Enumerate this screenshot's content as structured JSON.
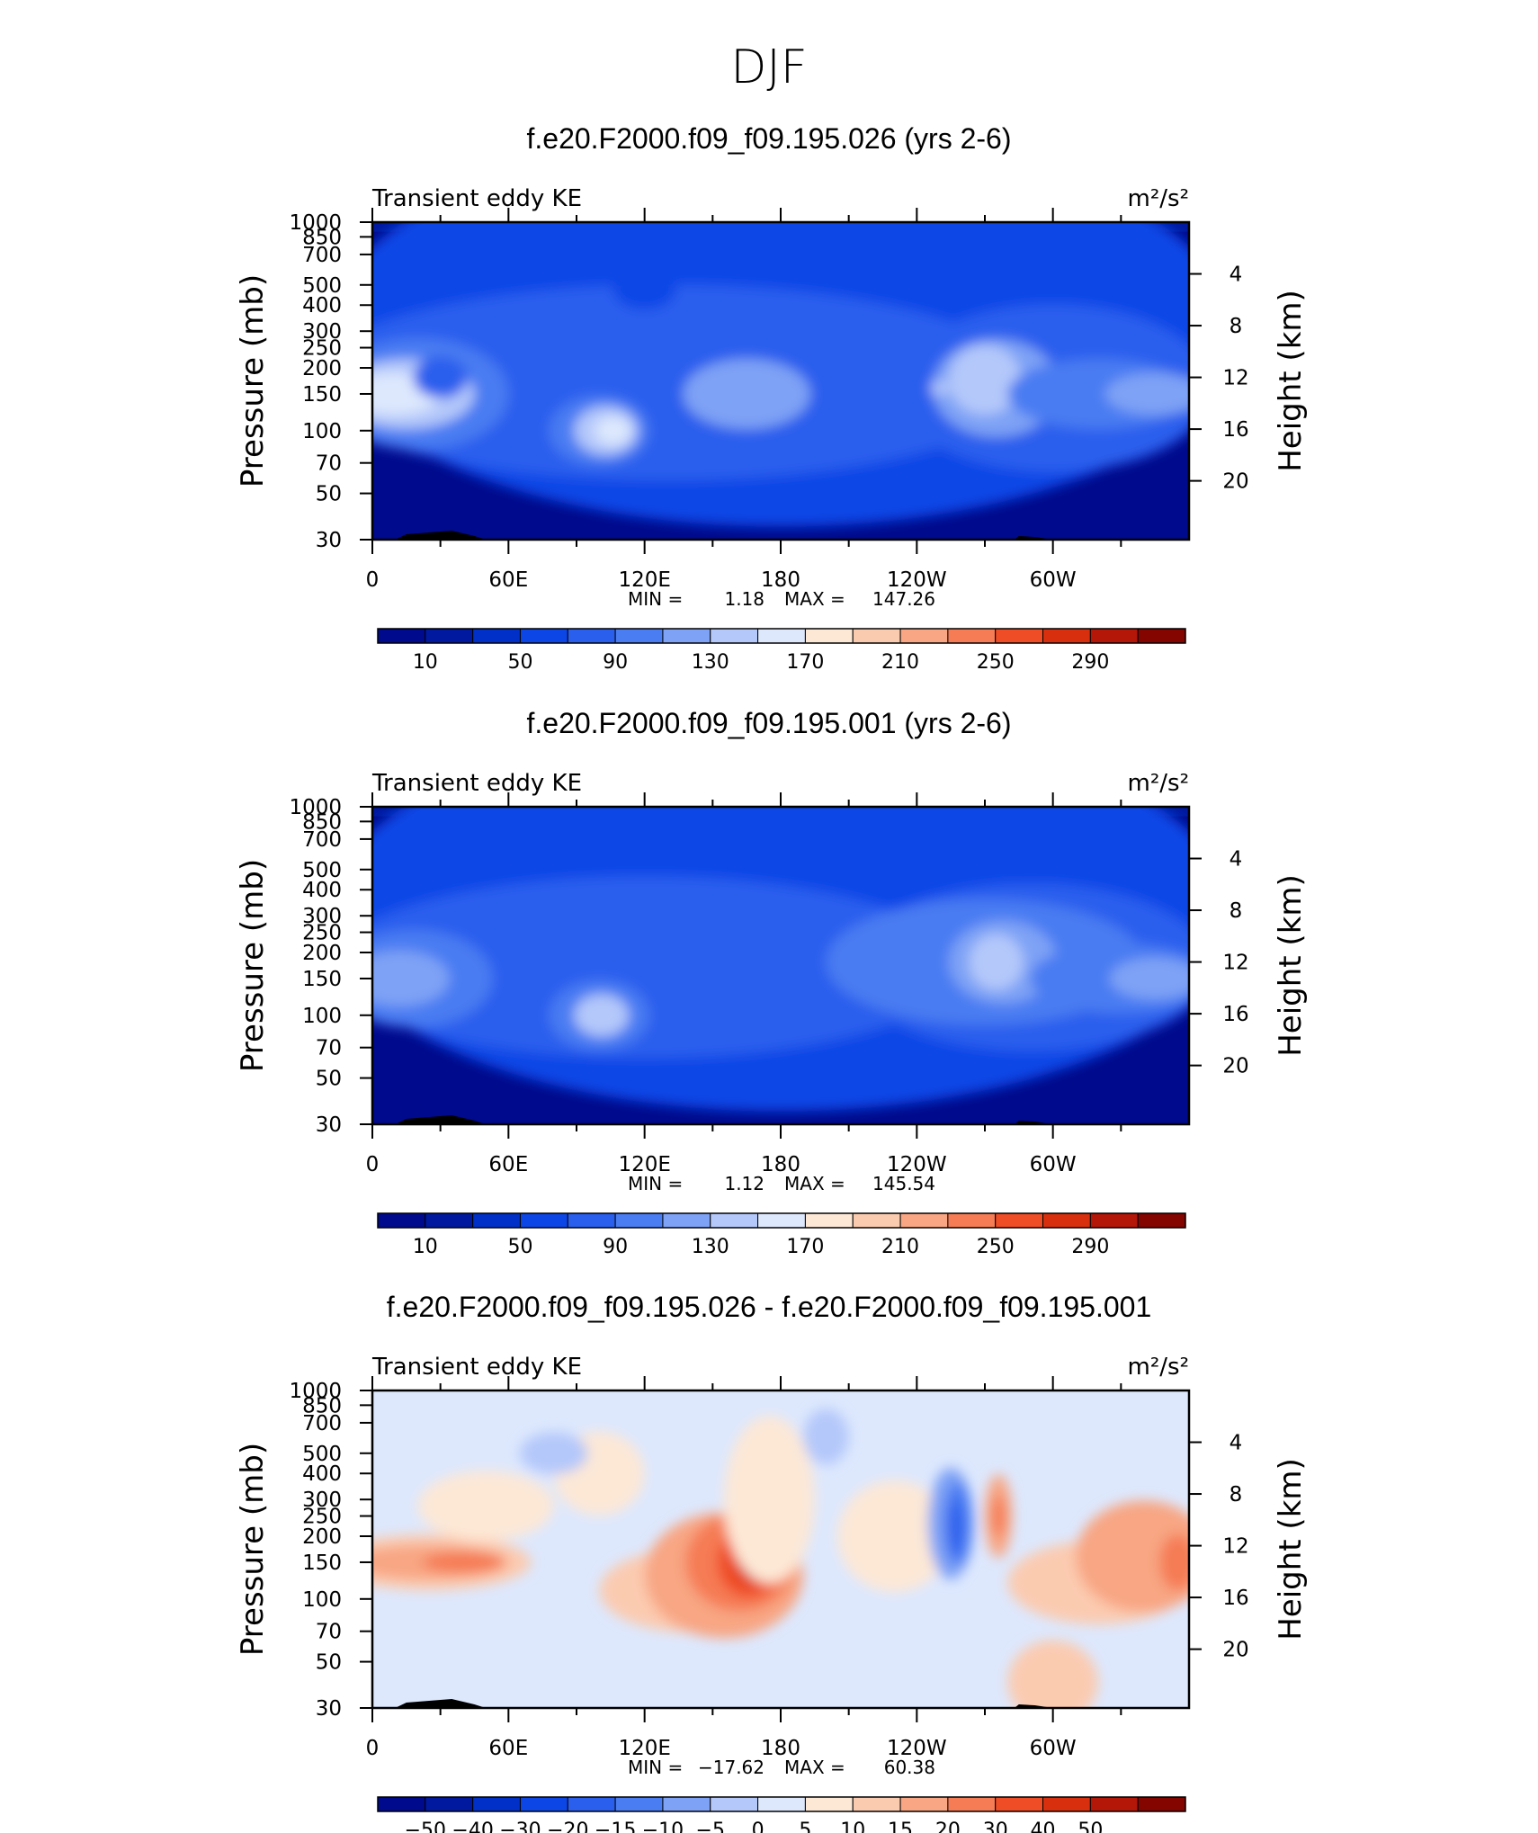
{
  "figure": {
    "title": "DJF"
  },
  "panel_titles": [
    "f.e20.F2000.f09_f09.195.026 (yrs 2-6)",
    "f.e20.F2000.f09_f09.195.001 (yrs 2-6)",
    "f.e20.F2000.f09_f09.195.026 - f.e20.F2000.f09_f09.195.001"
  ],
  "panel_var": "Transient eddy KE",
  "panel_units": "m²/s²",
  "pressure_label": "Pressure (mb)",
  "height_label": "Height (km)",
  "min_label": "MIN =",
  "max_label": "MAX =",
  "stats": [
    {
      "min": "1.18",
      "max": "147.26"
    },
    {
      "min": "1.12",
      "max": "145.54"
    },
    {
      "min": "−17.62",
      "max": "60.38"
    }
  ],
  "colors": {
    "seq": [
      "#000a8c",
      "#00199f",
      "#0030c8",
      "#0d46e6",
      "#2a5eed",
      "#4a7cf2",
      "#7ea2f5",
      "#b4c8fa",
      "#dde8fd",
      "#fde8d6",
      "#fbcbb0",
      "#f8a683",
      "#f57c55",
      "#ef4d25",
      "#d8300e",
      "#b41708",
      "#840400"
    ],
    "div": [
      "#000a8c",
      "#00199f",
      "#0030c8",
      "#0d46e6",
      "#2a5eed",
      "#4a7cf2",
      "#7ea2f5",
      "#b4c8fa",
      "#dde8fd",
      "#fde8d6",
      "#fbcbb0",
      "#f8a683",
      "#f57c55",
      "#ef4d25",
      "#d8300e",
      "#b41708",
      "#840400"
    ]
  },
  "chart_data": [
    {
      "type": "heatmap",
      "title": "f.e20.F2000.f09_f09.195.026 (yrs 2-6)",
      "variable": "Transient eddy KE",
      "units": "m²/s²",
      "x_ticks": [
        "0",
        "60E",
        "120E",
        "180",
        "120W",
        "60W"
      ],
      "y_ticks": [
        "30",
        "50",
        "70",
        "100",
        "150",
        "200",
        "250",
        "300",
        "400",
        "500",
        "700",
        "850",
        "1000"
      ],
      "ylim": [
        1000,
        30
      ],
      "y2_ticks": [
        "20",
        "16",
        "12",
        "8",
        "4"
      ],
      "colorbar_ticks": [
        "10",
        "50",
        "90",
        "130",
        "170",
        "210",
        "250",
        "290"
      ],
      "min": 1.18,
      "max": 147.26
    },
    {
      "type": "heatmap",
      "title": "f.e20.F2000.f09_f09.195.001 (yrs 2-6)",
      "variable": "Transient eddy KE",
      "units": "m²/s²",
      "x_ticks": [
        "0",
        "60E",
        "120E",
        "180",
        "120W",
        "60W"
      ],
      "y_ticks": [
        "30",
        "50",
        "70",
        "100",
        "150",
        "200",
        "250",
        "300",
        "400",
        "500",
        "700",
        "850",
        "1000"
      ],
      "ylim": [
        1000,
        30
      ],
      "y2_ticks": [
        "20",
        "16",
        "12",
        "8",
        "4"
      ],
      "colorbar_ticks": [
        "10",
        "50",
        "90",
        "130",
        "170",
        "210",
        "250",
        "290"
      ],
      "min": 1.12,
      "max": 145.54
    },
    {
      "type": "heatmap",
      "title": "f.e20.F2000.f09_f09.195.026 - f.e20.F2000.f09_f09.195.001",
      "variable": "Transient eddy KE",
      "units": "m²/s²",
      "x_ticks": [
        "0",
        "60E",
        "120E",
        "180",
        "120W",
        "60W"
      ],
      "y_ticks": [
        "30",
        "50",
        "70",
        "100",
        "150",
        "200",
        "250",
        "300",
        "400",
        "500",
        "700",
        "850",
        "1000"
      ],
      "ylim": [
        1000,
        30
      ],
      "y2_ticks": [
        "20",
        "16",
        "12",
        "8",
        "4"
      ],
      "colorbar_ticks": [
        "−50",
        "−40",
        "−30",
        "−20",
        "−15",
        "−10",
        "−5",
        "0",
        "5",
        "10",
        "15",
        "20",
        "30",
        "40",
        "50"
      ],
      "min": -17.62,
      "max": 60.38
    }
  ]
}
